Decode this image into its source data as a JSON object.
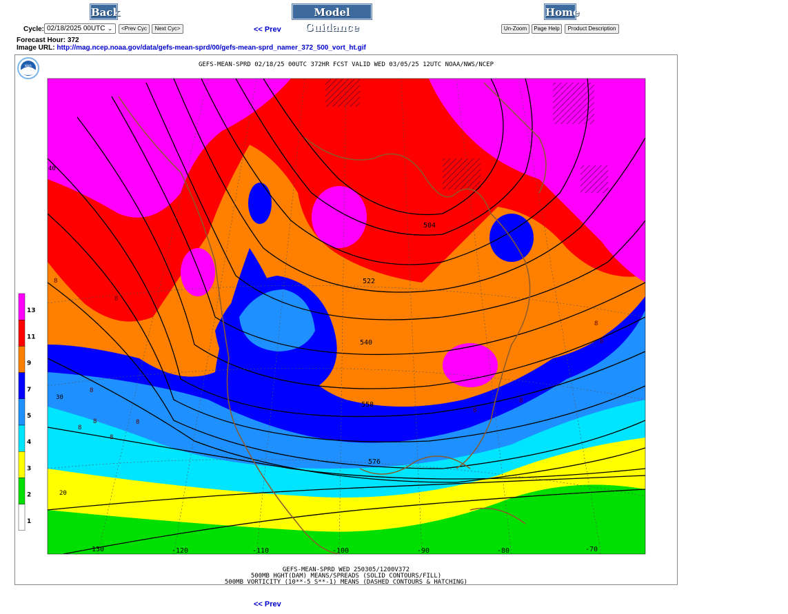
{
  "nav": {
    "back_label": "Back",
    "model_guidance_label": "Model Guidance",
    "home_label": "Home"
  },
  "controls": {
    "cycle_label": "Cycle:",
    "cycle_value": "02/18/2025 00UTC",
    "prev_cyc_label": "<Prev Cyc",
    "next_cyc_label": "Next Cyc>",
    "prev_link_label": "<< Prev",
    "unzoom_label": "Un-Zoom",
    "page_help_label": "Page Help",
    "product_description_label": "Product Description"
  },
  "info": {
    "forecast_hour_label": "Forecast Hour:",
    "forecast_hour_value": "372",
    "image_url_label": "Image URL:",
    "image_url_value": "http://mag.ncep.noaa.gov/data/gefs-mean-sprd/00/gefs-mean-sprd_namer_372_500_vort_ht.gif"
  },
  "map": {
    "logo_text": "NOAA",
    "header_text": "GEFS-MEAN-SPRD 02/18/25 00UTC 372HR FCST VALID WED 03/05/25 12UTC NOAA/NWS/NCEP",
    "footer_line1": "GEFS-MEAN-SPRD WED 250305/1200V372",
    "footer_line2": "500MB HGHT(DAM) MEANS/SPREADS (SOLID CONTOURS/FILL)",
    "footer_line3": "500MB VORTICITY (10**-5 S**-1) MEANS (DASHED CONTOURS & HATCHING)",
    "legend_labels": [
      "13",
      "11",
      "9",
      "7",
      "5",
      "4",
      "3",
      "2",
      "1"
    ],
    "legend_colors": [
      "#ff00ff",
      "#ff0000",
      "#ff8000",
      "#0000ff",
      "#1e90ff",
      "#00e5ff",
      "#ffff00",
      "#00e000",
      "#ffffff"
    ],
    "contour_labels": [
      "504",
      "522",
      "540",
      "558",
      "576"
    ],
    "longitude_labels": [
      "-130",
      "-120",
      "-110",
      "-100",
      "-90",
      "-80",
      "-70"
    ],
    "latitude_labels": [
      "40",
      "30",
      "20"
    ],
    "vorticity_labels": [
      "8",
      "8",
      "8",
      "8",
      "8",
      "8",
      "8",
      "8",
      "8",
      "8",
      "8"
    ]
  },
  "bottom": {
    "prev_link_label": "<< Prev"
  }
}
